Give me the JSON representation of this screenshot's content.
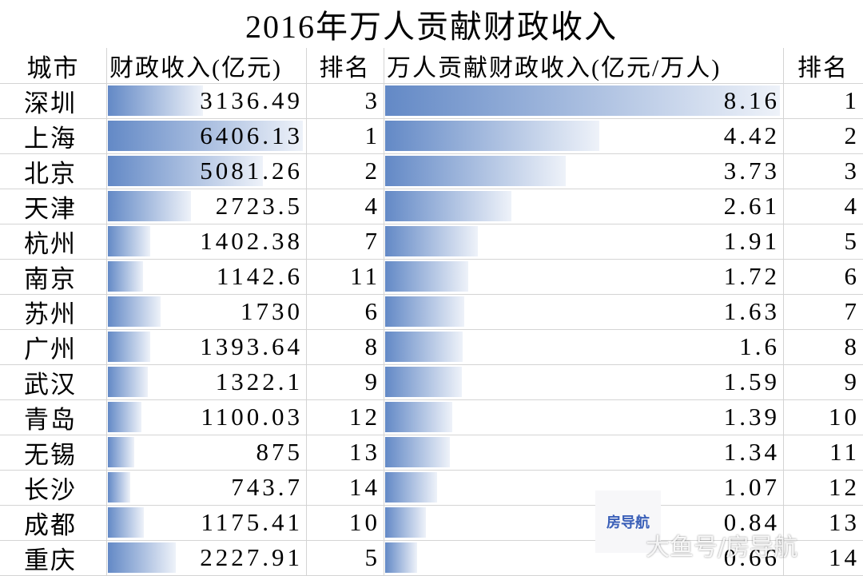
{
  "title": "2016年万人贡献财政收入",
  "table": {
    "header": [
      "城市",
      "财政收入(亿元)",
      "排名",
      "万人贡献财政收入(亿元/万人)",
      "排名"
    ],
    "rows": [
      [
        "深圳",
        3136.49,
        3,
        8.16,
        1
      ],
      [
        "上海",
        6406.13,
        1,
        4.42,
        2
      ],
      [
        "北京",
        5081.26,
        2,
        3.73,
        3
      ],
      [
        "天津",
        2723.5,
        4,
        2.61,
        4
      ],
      [
        "杭州",
        1402.38,
        7,
        1.91,
        5
      ],
      [
        "南京",
        1142.6,
        11,
        1.72,
        6
      ],
      [
        "苏州",
        1730,
        6,
        1.63,
        7
      ],
      [
        "广州",
        1393.64,
        8,
        1.6,
        8
      ],
      [
        "武汉",
        1322.1,
        9,
        1.59,
        9
      ],
      [
        "青岛",
        1100.03,
        12,
        1.39,
        10
      ],
      [
        "无锡",
        875,
        13,
        1.34,
        11
      ],
      [
        "长沙",
        743.7,
        14,
        1.07,
        12
      ],
      [
        "成都",
        1175.41,
        10,
        0.84,
        13
      ],
      [
        "重庆",
        2227.91,
        5,
        0.66,
        14
      ]
    ]
  },
  "watermark": {
    "logo": "房导航",
    "text": "大鱼号/房导航"
  }
}
